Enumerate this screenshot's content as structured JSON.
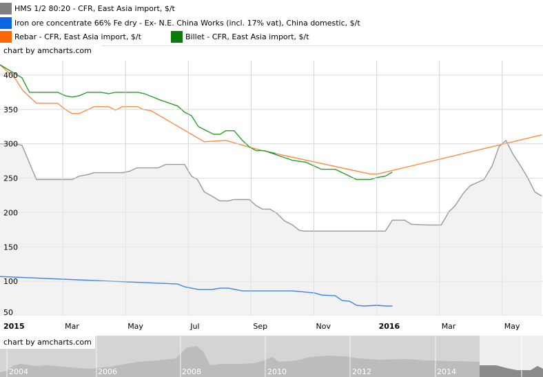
{
  "legend": [
    {
      "label": "HMS 1/2 80:20 - CFR, East Asia import, $/t",
      "color": "#808080"
    },
    {
      "label": "Iron ore concentrate 66% Fe dry - Ex- N.E. China Works (incl. 17% vat), China domestic, $/t",
      "color": "#0a64e6"
    },
    {
      "label": "Rebar - CFR, East Asia import, $/t",
      "color": "#ff6600"
    },
    {
      "label": "Billet - CFR, East Asia import, $/t",
      "color": "#0a7a0a"
    }
  ],
  "credit_top": "chart by amcharts.com",
  "credit_nav": "chart by amcharts.com",
  "chart_data": {
    "type": "line",
    "title": "",
    "xlabel": "",
    "ylabel": "",
    "x_units": "months since Jan 2015",
    "xlim": [
      0,
      17.3
    ],
    "ylim": [
      50,
      425
    ],
    "grid": true,
    "legend_placement": "top",
    "y_ticks": [
      "50",
      "100",
      "150",
      "200",
      "250",
      "300",
      "350",
      "400"
    ],
    "x_ticks": [
      {
        "m": 0,
        "label": "2015",
        "bold": true
      },
      {
        "m": 2,
        "label": "Mar"
      },
      {
        "m": 4,
        "label": "May"
      },
      {
        "m": 6,
        "label": "Jul"
      },
      {
        "m": 8,
        "label": "Sep"
      },
      {
        "m": 10,
        "label": "Nov"
      },
      {
        "m": 12,
        "label": "2016",
        "bold": true
      },
      {
        "m": 14,
        "label": "Mar"
      },
      {
        "m": 16,
        "label": "May"
      }
    ],
    "series": [
      {
        "name": "HMS 1/2 80:20 - CFR, East Asia import, $/t",
        "color": "#999999",
        "fill": true,
        "x": [
          0,
          0.44,
          0.7,
          1.16,
          2.3,
          2.52,
          2.78,
          3.0,
          3.9,
          4.12,
          4.36,
          5.04,
          5.28,
          5.88,
          6.1,
          6.29,
          6.51,
          6.75,
          7.0,
          7.28,
          7.46,
          7.94,
          8.16,
          8.36,
          8.6,
          8.82,
          9.06,
          9.32,
          9.54,
          9.71,
          12.28,
          12.5,
          12.89,
          13.11,
          13.6,
          14.06,
          14.3,
          14.5,
          14.76,
          14.98,
          15.42,
          15.68,
          15.9,
          16.12,
          16.34,
          16.56,
          16.82,
          17.04,
          17.26
        ],
        "y": [
          300,
          300,
          298,
          248,
          248,
          253,
          255,
          258,
          258,
          260,
          265,
          265,
          270,
          270,
          253,
          248,
          230,
          224,
          217,
          217,
          219,
          219,
          210,
          205,
          205,
          199,
          188,
          182,
          174,
          173,
          173,
          189,
          189,
          183,
          182,
          182,
          201,
          210,
          228,
          239,
          248,
          268,
          296,
          305,
          285,
          270,
          250,
          230,
          224
        ]
      },
      {
        "name": "Iron ore concentrate 66% Fe dry - Ex- N.E. China Works (incl. 17% vat), China domestic, $/t",
        "color": "#3a86e0",
        "fill": false,
        "x": [
          0,
          5.66,
          5.88,
          6.32,
          6.75,
          7.02,
          7.28,
          7.72,
          8.55,
          9.32,
          10.02,
          10.24,
          10.68,
          10.9,
          11.14,
          11.36,
          11.58,
          12.02,
          12.28,
          12.5
        ],
        "y": [
          107,
          96,
          92,
          88,
          88,
          90,
          90,
          86,
          86,
          86,
          83,
          80,
          79,
          72,
          71,
          65,
          64,
          65,
          64,
          64
        ]
      },
      {
        "name": "Rebar - CFR, East Asia import, $/t",
        "color": "#ff8a3d",
        "fill": false,
        "x": [
          0,
          0.48,
          0.72,
          1.16,
          1.84,
          2.08,
          2.3,
          2.52,
          3.0,
          3.46,
          3.68,
          3.9,
          4.39,
          4.56,
          4.82,
          6.51,
          7.19,
          7.96,
          8.55,
          11.8,
          12.02,
          17.26
        ],
        "y": [
          415,
          395,
          378,
          359,
          359,
          350,
          344,
          344,
          354,
          354,
          349,
          354,
          354,
          350,
          348,
          303,
          305,
          295,
          288,
          256,
          256,
          313
        ]
      },
      {
        "name": "Billet - CFR, East Asia import, $/t",
        "color": "#2a9a2a",
        "fill": false,
        "x": [
          0,
          0.7,
          0.94,
          1.84,
          2.08,
          2.3,
          2.52,
          2.78,
          3.22,
          3.46,
          3.68,
          4.39,
          4.6,
          5.09,
          5.66,
          5.88,
          6.1,
          6.32,
          6.8,
          7.02,
          7.19,
          7.46,
          7.72,
          7.96,
          8.16,
          8.4,
          8.77,
          8.55,
          9.32,
          9.76,
          10.24,
          10.68,
          11.36,
          11.8,
          12.02,
          12.28,
          12.5
        ],
        "y": [
          415,
          396,
          375,
          375,
          370,
          368,
          370,
          375,
          375,
          373,
          375,
          375,
          373,
          364,
          355,
          346,
          341,
          325,
          314,
          314,
          319,
          319,
          305,
          295,
          290,
          290,
          286,
          288,
          276,
          273,
          263,
          263,
          248,
          248,
          251,
          253,
          259
        ]
      }
    ]
  },
  "navigator": {
    "years": [
      "2004",
      "2006",
      "2008",
      "2010",
      "2012",
      "2014"
    ]
  }
}
